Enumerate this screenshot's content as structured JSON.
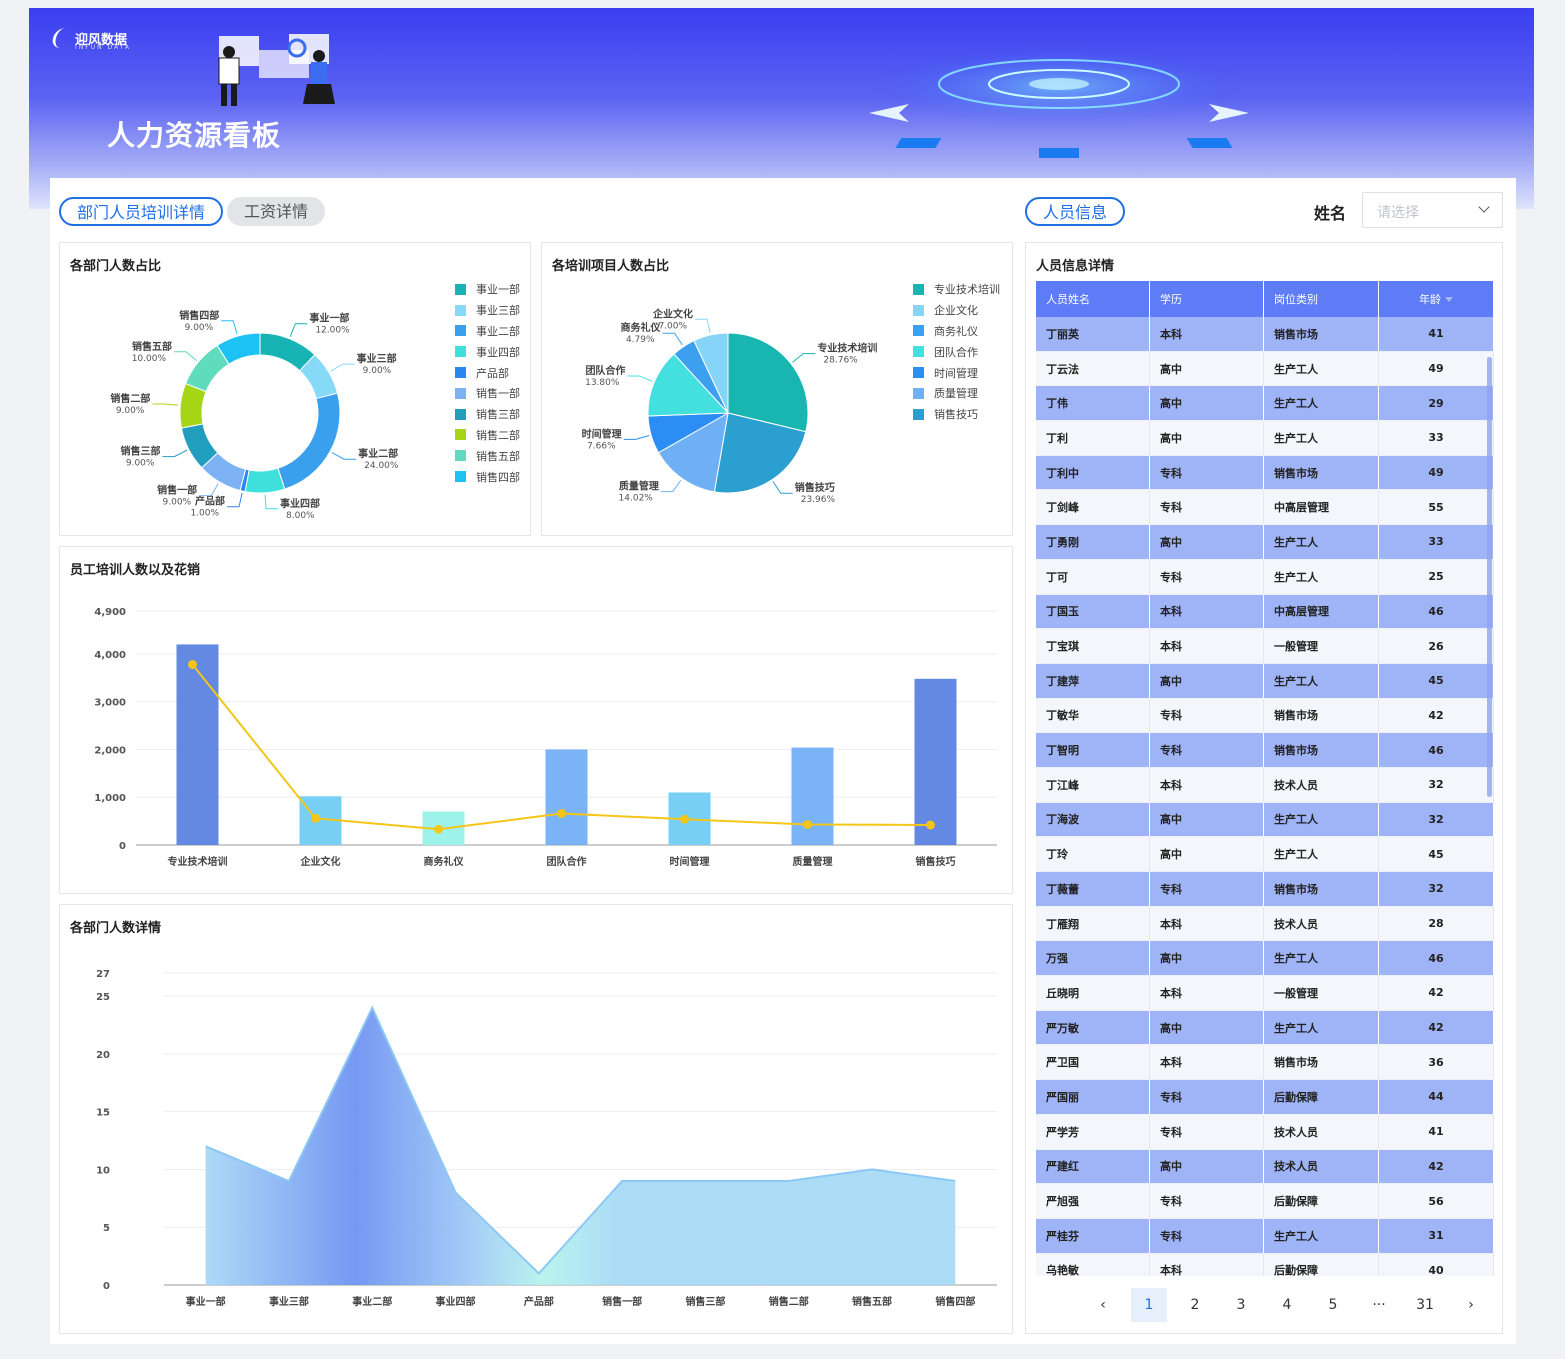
{
  "brand": {
    "logo_text": "迎风数据",
    "logo_sub": "INFUN DATA"
  },
  "page_title": "人力资源看板",
  "tabs": [
    {
      "label": "部门人员培训详情",
      "active": true
    },
    {
      "label": "工资详情",
      "active": false
    }
  ],
  "people_section": {
    "tab_label": "人员信息",
    "filter_label": "姓名",
    "filter_placeholder": "请选择"
  },
  "colors": {
    "accent": "#1f6fe5",
    "table_header": "#5e7cf5",
    "row_alt": "#9fb4f6",
    "line": "#f5c518"
  },
  "dept_chart": {
    "title": "各部门人数占比",
    "chart_data": {
      "type": "pie",
      "donut": true,
      "slices": [
        {
          "name": "事业一部",
          "label": "事业一部",
          "value": 12.0,
          "pct": "12.00%",
          "color": "#17b3b5"
        },
        {
          "name": "事业三部",
          "label": "事业三部",
          "value": 9.0,
          "pct": "9.00%",
          "color": "#86d9f7"
        },
        {
          "name": "事业二部",
          "label": "事业二部",
          "value": 24.0,
          "pct": "24.00%",
          "color": "#3aa0ee"
        },
        {
          "name": "事业四部",
          "label": "事业四部",
          "value": 8.0,
          "pct": "8.00%",
          "color": "#3fe0dc"
        },
        {
          "name": "产品部",
          "label": "产品部",
          "value": 1.0,
          "pct": "1.00%",
          "color": "#2b86f0"
        },
        {
          "name": "销售一部",
          "label": "销售一部",
          "value": 9.0,
          "pct": "9.00%",
          "color": "#7db2f5"
        },
        {
          "name": "销售三部",
          "label": "销售三部",
          "value": 9.0,
          "pct": "9.00%",
          "color": "#219ebe"
        },
        {
          "name": "销售二部",
          "label": "销售二部",
          "value": 9.0,
          "pct": "9.00%",
          "color": "#a6d516"
        },
        {
          "name": "销售五部",
          "label": "销售五部",
          "value": 10.0,
          "pct": "10.00%",
          "color": "#5fdcbe"
        },
        {
          "name": "销售四部",
          "label": "销售四部",
          "value": 9.0,
          "pct": "9.00%",
          "color": "#1cc2f3"
        }
      ],
      "legend": [
        "事业一部",
        "事业三部",
        "事业二部",
        "事业四部",
        "产品部",
        "销售一部",
        "销售三部",
        "销售二部",
        "销售五部",
        "销售四部"
      ],
      "legend_labels": [
        "事业一部",
        "事业三部",
        "事业二部",
        "事业四部",
        "产品部",
        "销售一部",
        "销售三部",
        "销售二部",
        "销售五部",
        "销售四部"
      ],
      "legend_position": "right"
    }
  },
  "training_chart": {
    "title": "各培训项目人数占比",
    "chart_data": {
      "type": "pie",
      "slices": [
        {
          "name": "专业技术培训",
          "value": 28.76,
          "pct": "28.76%",
          "color": "#19b5b1"
        },
        {
          "name": "销售技巧",
          "value": 23.96,
          "pct": "23.96%",
          "color": "#2a9fd0"
        },
        {
          "name": "质量管理",
          "value": 14.02,
          "pct": "14.02%",
          "color": "#6fb0f5"
        },
        {
          "name": "时间管理",
          "value": 7.66,
          "pct": "7.66%",
          "color": "#2c8ef5"
        },
        {
          "name": "团队合作",
          "value": 13.8,
          "pct": "13.80%",
          "color": "#43e0df"
        },
        {
          "name": "商务礼仪",
          "value": 4.79,
          "pct": "4.79%",
          "color": "#3d9ff0"
        },
        {
          "name": "企业文化",
          "value": 7.0,
          "pct": "7.00%",
          "color": "#86d5f8"
        }
      ],
      "legend": [
        "专业技术培训",
        "企业文化",
        "商务礼仪",
        "团队合作",
        "时间管理",
        "质量管理",
        "销售技巧"
      ],
      "legend_labels": [
        "专业技术培训",
        "企业文化",
        "商务礼仪",
        "团队合作",
        "时间管理",
        "质量管理",
        "销售技巧"
      ],
      "legend_position": "right"
    }
  },
  "cost_chart": {
    "title": "员工培训人数以及花销",
    "chart_data": {
      "type": "bar",
      "categories": [
        "专业技术培训",
        "企业文化",
        "商务礼仪",
        "团队合作",
        "时间管理",
        "质量管理",
        "销售技巧"
      ],
      "series": [
        {
          "kind": "bar",
          "values": [
            4200,
            1020,
            700,
            2000,
            1100,
            2040,
            3480
          ],
          "colors": [
            "#6389e3",
            "#77cff5",
            "#9df3ea",
            "#7ab3f6",
            "#77cff5",
            "#7ab3f6",
            "#6389e3"
          ]
        },
        {
          "kind": "line",
          "values": [
            3780,
            560,
            330,
            660,
            540,
            430,
            420
          ],
          "color": "#f5c518"
        }
      ],
      "yticks": [
        "0",
        "1,000",
        "2,000",
        "3,000",
        "4,000",
        "4,900"
      ],
      "ytick_values": [
        0,
        1000,
        2000,
        3000,
        4000,
        4900
      ],
      "ylim": [
        0,
        4900
      ],
      "grid": true
    }
  },
  "headcount_chart": {
    "title": "各部门人数详情",
    "chart_data": {
      "type": "area",
      "categories": [
        "事业一部",
        "事业三部",
        "事业二部",
        "事业四部",
        "产品部",
        "销售一部",
        "销售三部",
        "销售二部",
        "销售五部",
        "销售四部"
      ],
      "values": [
        12,
        9,
        24,
        8,
        1,
        9,
        9,
        9,
        10,
        9
      ],
      "yticks": [
        "0",
        "5",
        "10",
        "15",
        "20",
        "25",
        "27"
      ],
      "ytick_values": [
        0,
        5,
        10,
        15,
        20,
        25,
        27
      ],
      "ylim": [
        0,
        27
      ],
      "grid": true
    }
  },
  "people_table": {
    "title": "人员信息详情",
    "columns": [
      "人员姓名",
      "学历",
      "岗位类别",
      "年龄"
    ],
    "rows": [
      [
        "丁丽英",
        "本科",
        "销售市场",
        "41"
      ],
      [
        "丁云法",
        "高中",
        "生产工人",
        "49"
      ],
      [
        "丁伟",
        "高中",
        "生产工人",
        "29"
      ],
      [
        "丁利",
        "高中",
        "生产工人",
        "33"
      ],
      [
        "丁利中",
        "专科",
        "销售市场",
        "49"
      ],
      [
        "丁剑峰",
        "专科",
        "中高层管理",
        "55"
      ],
      [
        "丁勇刚",
        "高中",
        "生产工人",
        "33"
      ],
      [
        "丁可",
        "专科",
        "生产工人",
        "25"
      ],
      [
        "丁国玉",
        "本科",
        "中高层管理",
        "46"
      ],
      [
        "丁宝琪",
        "本科",
        "一般管理",
        "26"
      ],
      [
        "丁建萍",
        "高中",
        "生产工人",
        "45"
      ],
      [
        "丁敏华",
        "专科",
        "销售市场",
        "42"
      ],
      [
        "丁智明",
        "专科",
        "销售市场",
        "46"
      ],
      [
        "丁江峰",
        "本科",
        "技术人员",
        "32"
      ],
      [
        "丁海波",
        "高中",
        "生产工人",
        "32"
      ],
      [
        "丁玲",
        "高中",
        "生产工人",
        "45"
      ],
      [
        "丁薇蕾",
        "专科",
        "销售市场",
        "32"
      ],
      [
        "丁雁翔",
        "本科",
        "技术人员",
        "28"
      ],
      [
        "万强",
        "高中",
        "生产工人",
        "46"
      ],
      [
        "丘晓明",
        "本科",
        "一般管理",
        "42"
      ],
      [
        "严万敏",
        "高中",
        "生产工人",
        "42"
      ],
      [
        "严卫国",
        "本科",
        "销售市场",
        "36"
      ],
      [
        "严国丽",
        "专科",
        "后勤保障",
        "44"
      ],
      [
        "严学芳",
        "专科",
        "技术人员",
        "41"
      ],
      [
        "严建红",
        "高中",
        "技术人员",
        "42"
      ],
      [
        "严旭强",
        "专科",
        "后勤保障",
        "56"
      ],
      [
        "严桂芬",
        "专科",
        "生产工人",
        "31"
      ],
      [
        "乌艳敏",
        "本科",
        "后勤保障",
        "40"
      ]
    ],
    "sort_column": "年龄"
  },
  "pagination": {
    "prev": "‹",
    "pages": [
      "1",
      "2",
      "3",
      "4",
      "5",
      "···",
      "31"
    ],
    "current": "1",
    "next": "›"
  }
}
